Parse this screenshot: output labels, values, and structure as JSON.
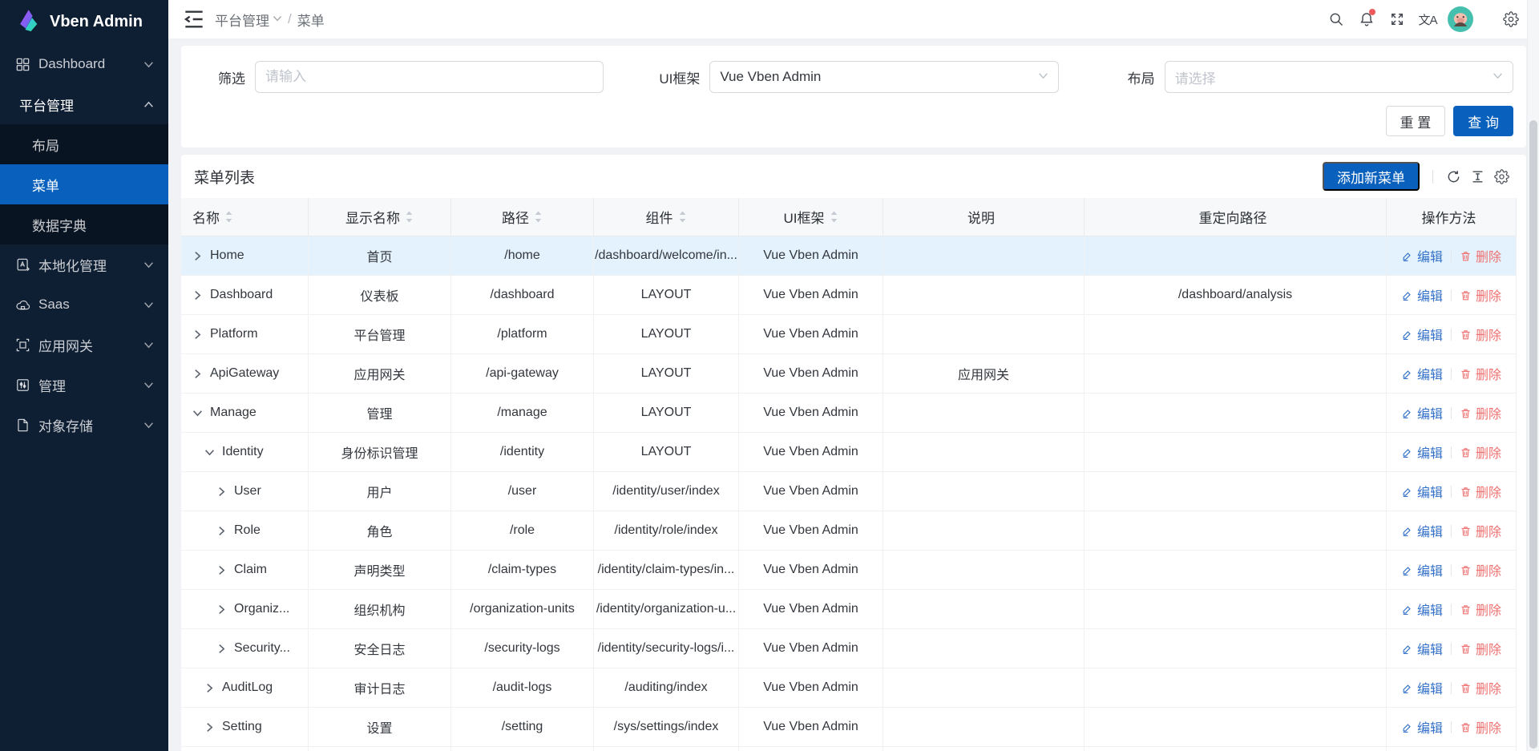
{
  "app": {
    "name": "Vben Admin"
  },
  "colors": {
    "primary": "#0960bd",
    "sidebar_bg": "#0e1e33",
    "sidebar_submenu_bg": "#091422",
    "row_highlight": "#e3f2fc",
    "edit_link": "#3471c9",
    "delete_link": "#ef7171"
  },
  "sidebar": {
    "items": [
      {
        "id": "dashboard",
        "label": "Dashboard",
        "icon": "dashboard-icon",
        "chevron": "down"
      },
      {
        "id": "platform-management",
        "label": "平台管理",
        "chevron": "up",
        "section_open": true
      },
      {
        "id": "layout",
        "label": "布局",
        "sub": true
      },
      {
        "id": "menu",
        "label": "菜单",
        "sub": true,
        "selected": true
      },
      {
        "id": "data-dictionary",
        "label": "数据字典",
        "sub": true
      },
      {
        "id": "localization",
        "label": "本地化管理",
        "icon": "localization-icon",
        "chevron": "down"
      },
      {
        "id": "saas",
        "label": "Saas",
        "icon": "cloud-icon",
        "chevron": "down"
      },
      {
        "id": "app-gateway",
        "label": "应用网关",
        "icon": "gateway-icon",
        "chevron": "down"
      },
      {
        "id": "manage",
        "label": "管理",
        "icon": "manage-icon",
        "chevron": "down"
      },
      {
        "id": "object-storage",
        "label": "对象存储",
        "icon": "file-icon",
        "chevron": "down"
      }
    ]
  },
  "header": {
    "breadcrumb_section": "平台管理",
    "breadcrumb_separator": "/",
    "breadcrumb_current": "菜单",
    "translate_glyph": "文A",
    "icons": [
      "search-icon",
      "notification-icon",
      "fullscreen-icon",
      "translate-icon",
      "avatar",
      "settings-icon"
    ],
    "notification_has_badge": true
  },
  "filter": {
    "filter_label": "筛选",
    "filter_placeholder": "请输入",
    "filter_value": "",
    "framework_label": "UI框架",
    "framework_value": "Vue Vben Admin",
    "layout_label": "布局",
    "layout_placeholder": "请选择",
    "reset_button": "重 置",
    "search_button": "查 询"
  },
  "table": {
    "title": "菜单列表",
    "add_button": "添加新菜单",
    "edit_action": "编辑",
    "delete_action": "删除",
    "columns": [
      {
        "label": "名称",
        "sortable": true
      },
      {
        "label": "显示名称",
        "sortable": true
      },
      {
        "label": "路径",
        "sortable": true
      },
      {
        "label": "组件",
        "sortable": true
      },
      {
        "label": "UI框架",
        "sortable": true
      },
      {
        "label": "说明",
        "sortable": false
      },
      {
        "label": "重定向路径",
        "sortable": false
      },
      {
        "label": "操作方法",
        "sortable": false
      }
    ],
    "rows": [
      {
        "name": "Home",
        "level": 0,
        "expanded": false,
        "display_name": "首页",
        "path": "/home",
        "component": "/dashboard/welcome/in...",
        "framework": "Vue Vben Admin",
        "description": "",
        "redirect": "",
        "highlighted": true
      },
      {
        "name": "Dashboard",
        "level": 0,
        "expanded": false,
        "display_name": "仪表板",
        "path": "/dashboard",
        "component": "LAYOUT",
        "framework": "Vue Vben Admin",
        "description": "",
        "redirect": "/dashboard/analysis",
        "highlighted": false
      },
      {
        "name": "Platform",
        "level": 0,
        "expanded": false,
        "display_name": "平台管理",
        "path": "/platform",
        "component": "LAYOUT",
        "framework": "Vue Vben Admin",
        "description": "",
        "redirect": "",
        "highlighted": false
      },
      {
        "name": "ApiGateway",
        "level": 0,
        "expanded": false,
        "display_name": "应用网关",
        "path": "/api-gateway",
        "component": "LAYOUT",
        "framework": "Vue Vben Admin",
        "description": "应用网关",
        "redirect": "",
        "highlighted": false
      },
      {
        "name": "Manage",
        "level": 0,
        "expanded": true,
        "display_name": "管理",
        "path": "/manage",
        "component": "LAYOUT",
        "framework": "Vue Vben Admin",
        "description": "",
        "redirect": "",
        "highlighted": false
      },
      {
        "name": "Identity",
        "level": 1,
        "expanded": true,
        "display_name": "身份标识管理",
        "path": "/identity",
        "component": "LAYOUT",
        "framework": "Vue Vben Admin",
        "description": "",
        "redirect": "",
        "highlighted": false
      },
      {
        "name": "User",
        "level": 2,
        "expanded": false,
        "display_name": "用户",
        "path": "/user",
        "component": "/identity/user/index",
        "framework": "Vue Vben Admin",
        "description": "",
        "redirect": "",
        "highlighted": false
      },
      {
        "name": "Role",
        "level": 2,
        "expanded": false,
        "display_name": "角色",
        "path": "/role",
        "component": "/identity/role/index",
        "framework": "Vue Vben Admin",
        "description": "",
        "redirect": "",
        "highlighted": false
      },
      {
        "name": "Claim",
        "level": 2,
        "expanded": false,
        "display_name": "声明类型",
        "path": "/claim-types",
        "component": "/identity/claim-types/in...",
        "framework": "Vue Vben Admin",
        "description": "",
        "redirect": "",
        "highlighted": false
      },
      {
        "name": "Organiz...",
        "level": 2,
        "expanded": false,
        "display_name": "组织机构",
        "path": "/organization-units",
        "component": "/identity/organization-u...",
        "framework": "Vue Vben Admin",
        "description": "",
        "redirect": "",
        "highlighted": false
      },
      {
        "name": "Security...",
        "level": 2,
        "expanded": false,
        "display_name": "安全日志",
        "path": "/security-logs",
        "component": "/identity/security-logs/i...",
        "framework": "Vue Vben Admin",
        "description": "",
        "redirect": "",
        "highlighted": false
      },
      {
        "name": "AuditLog",
        "level": 1,
        "expanded": false,
        "display_name": "审计日志",
        "path": "/audit-logs",
        "component": "/auditing/index",
        "framework": "Vue Vben Admin",
        "description": "",
        "redirect": "",
        "highlighted": false
      },
      {
        "name": "Setting",
        "level": 1,
        "expanded": false,
        "display_name": "设置",
        "path": "/setting",
        "component": "/sys/settings/index",
        "framework": "Vue Vben Admin",
        "description": "",
        "redirect": "",
        "highlighted": false
      }
    ]
  }
}
